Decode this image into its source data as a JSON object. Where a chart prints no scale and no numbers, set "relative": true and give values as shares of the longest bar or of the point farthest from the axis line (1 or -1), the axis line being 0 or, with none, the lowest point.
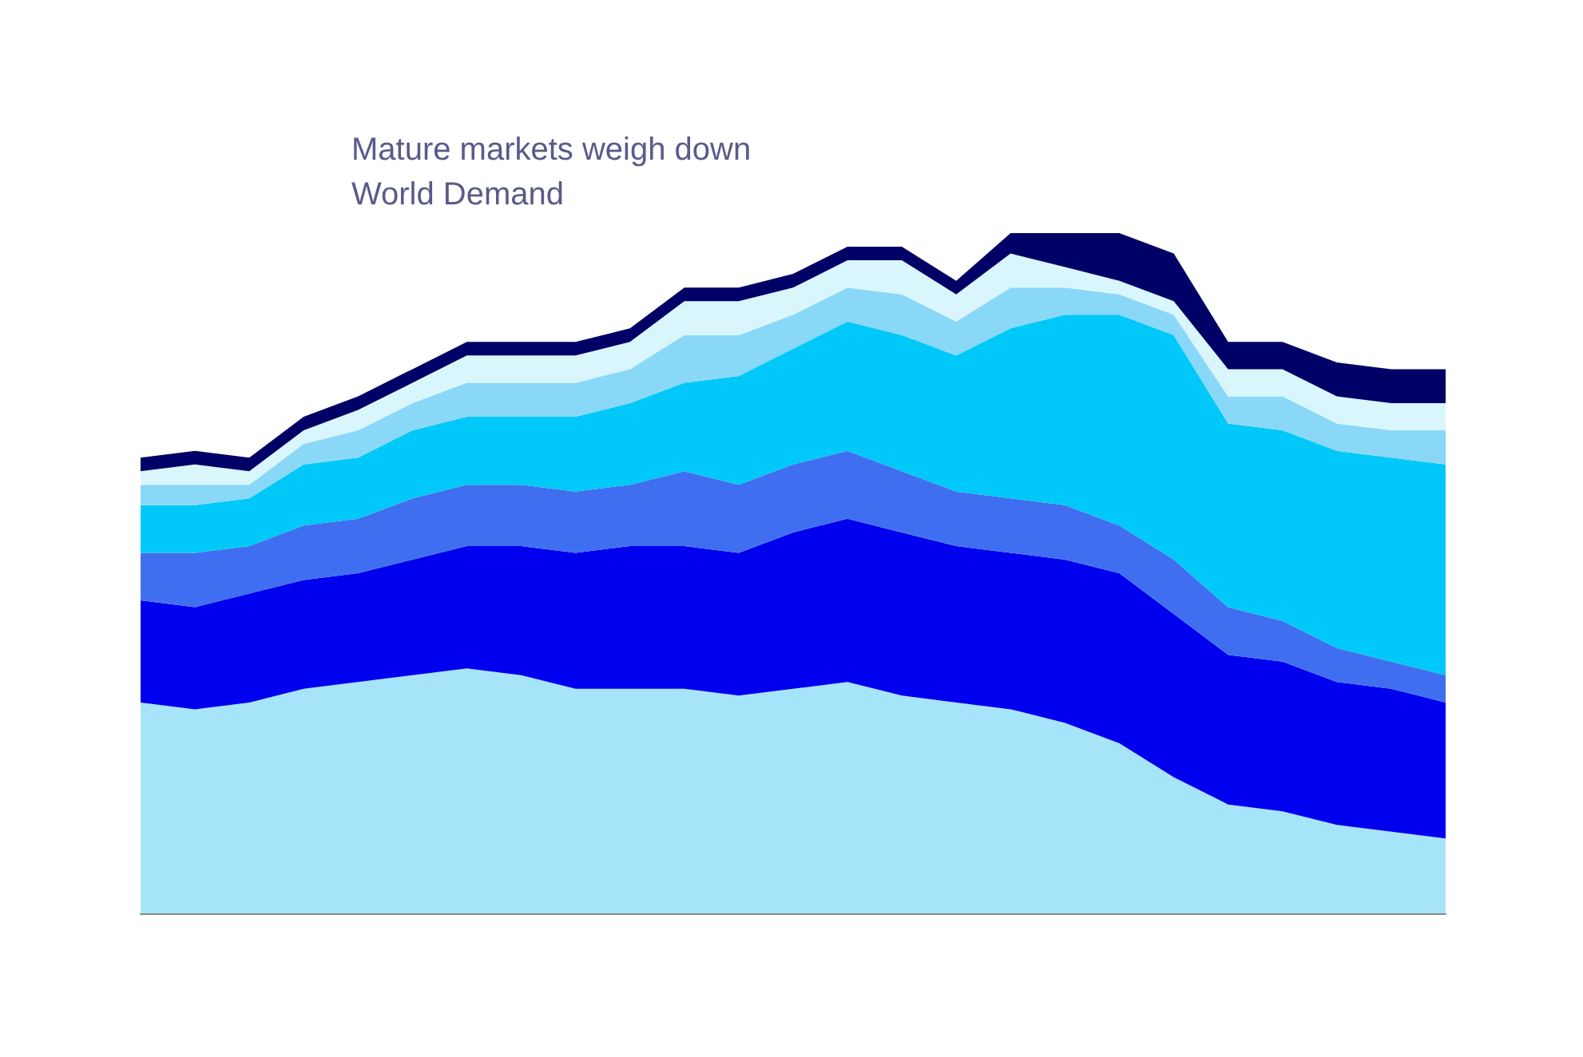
{
  "chart_data": {
    "type": "area",
    "stacked": true,
    "relative": true,
    "title": "Mature markets weigh down World Demand",
    "grid": false,
    "marker": "none",
    "categories": [
      null,
      null,
      null,
      null,
      null,
      null,
      null,
      null,
      null,
      null,
      null,
      null,
      null,
      null,
      null,
      null,
      null,
      null,
      null,
      null,
      null,
      null,
      null,
      null,
      null
    ],
    "series": [
      {
        "color": "#a6e4fa",
        "values": [
          0.31,
          0.3,
          0.31,
          0.33,
          0.34,
          0.35,
          0.36,
          0.35,
          0.33,
          0.33,
          0.33,
          0.32,
          0.33,
          0.34,
          0.32,
          0.31,
          0.3,
          0.28,
          0.25,
          0.2,
          0.16,
          0.15,
          0.13,
          0.12,
          0.11
        ]
      },
      {
        "color": "#0000ee",
        "values": [
          0.15,
          0.15,
          0.16,
          0.16,
          0.16,
          0.17,
          0.18,
          0.19,
          0.2,
          0.21,
          0.21,
          0.21,
          0.23,
          0.24,
          0.24,
          0.23,
          0.23,
          0.24,
          0.25,
          0.24,
          0.22,
          0.22,
          0.21,
          0.21,
          0.2
        ]
      },
      {
        "color": "#3f6ff0",
        "values": [
          0.07,
          0.08,
          0.07,
          0.08,
          0.08,
          0.09,
          0.09,
          0.09,
          0.09,
          0.09,
          0.11,
          0.1,
          0.1,
          0.1,
          0.09,
          0.08,
          0.08,
          0.08,
          0.07,
          0.08,
          0.07,
          0.06,
          0.05,
          0.04,
          0.04
        ]
      },
      {
        "color": "#00c8f8",
        "values": [
          0.07,
          0.07,
          0.07,
          0.09,
          0.09,
          0.1,
          0.1,
          0.1,
          0.11,
          0.12,
          0.13,
          0.16,
          0.17,
          0.19,
          0.2,
          0.2,
          0.25,
          0.28,
          0.31,
          0.33,
          0.27,
          0.28,
          0.29,
          0.3,
          0.31
        ]
      },
      {
        "color": "#8ad8f8",
        "values": [
          0.03,
          0.03,
          0.02,
          0.03,
          0.04,
          0.04,
          0.05,
          0.05,
          0.05,
          0.05,
          0.07,
          0.06,
          0.05,
          0.05,
          0.06,
          0.05,
          0.06,
          0.04,
          0.03,
          0.03,
          0.04,
          0.05,
          0.04,
          0.04,
          0.05
        ]
      },
      {
        "color": "#d8f6fc",
        "values": [
          0.02,
          0.03,
          0.02,
          0.02,
          0.03,
          0.03,
          0.04,
          0.04,
          0.04,
          0.04,
          0.05,
          0.05,
          0.04,
          0.04,
          0.05,
          0.04,
          0.05,
          0.03,
          0.02,
          0.02,
          0.04,
          0.04,
          0.04,
          0.04,
          0.04
        ]
      },
      {
        "color": "#000066",
        "values": [
          0.02,
          0.02,
          0.02,
          0.02,
          0.02,
          0.02,
          0.02,
          0.02,
          0.02,
          0.02,
          0.02,
          0.02,
          0.02,
          0.02,
          0.02,
          0.02,
          0.03,
          0.05,
          0.07,
          0.07,
          0.04,
          0.04,
          0.05,
          0.05,
          0.05
        ]
      }
    ]
  }
}
